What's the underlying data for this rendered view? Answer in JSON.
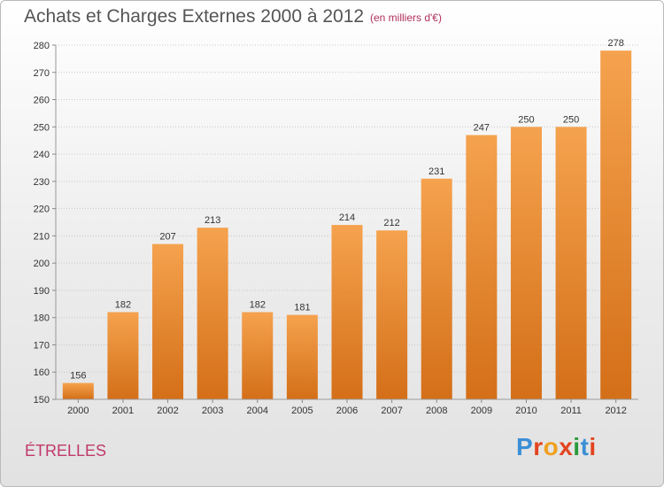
{
  "header": {
    "title": "Achats et Charges Externes 2000 à 2012",
    "unit_note": "(en milliers d'€)"
  },
  "footer": {
    "commune": "ÉTRELLES",
    "logo_text": "Proxiti",
    "logo_colors": [
      "#3b8fd6",
      "#e2441f",
      "#f0a01f",
      "#e2441f",
      "#2c9a3c",
      "#3b8fd6",
      "#e2441f"
    ]
  },
  "chart_data": {
    "type": "bar",
    "title": "Achats et Charges Externes 2000 à 2012",
    "categories": [
      "2000",
      "2001",
      "2002",
      "2003",
      "2004",
      "2005",
      "2006",
      "2007",
      "2008",
      "2009",
      "2010",
      "2011",
      "2012"
    ],
    "values": [
      156,
      182,
      207,
      213,
      182,
      181,
      214,
      212,
      231,
      247,
      250,
      250,
      278
    ],
    "ylim": [
      150,
      280
    ],
    "yticks": [
      150,
      160,
      170,
      180,
      190,
      200,
      210,
      220,
      230,
      240,
      250,
      260,
      270,
      280
    ],
    "grid": true,
    "bar_color_top": "#f5a24e",
    "bar_color_bottom": "#d46f18"
  }
}
